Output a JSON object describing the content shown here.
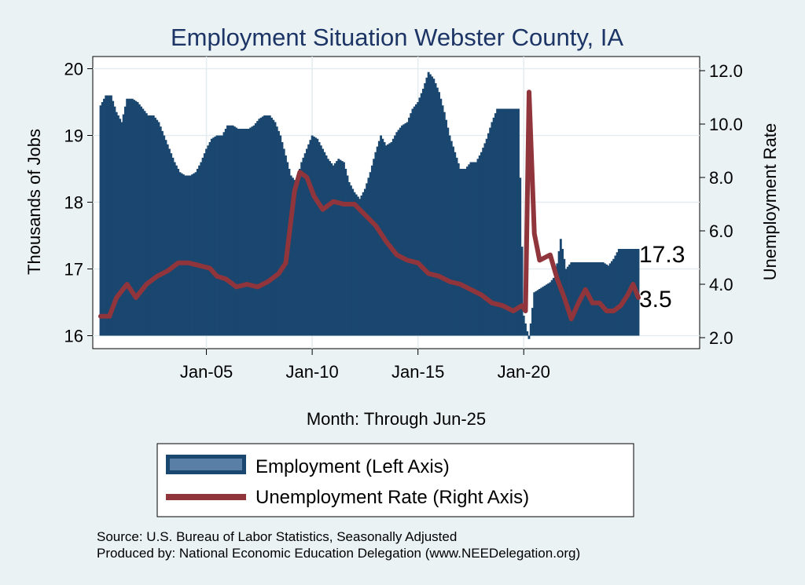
{
  "chart_data": {
    "type": "bar+line",
    "title": "Employment Situation Webster  County, IA",
    "xlabel": "Month: Through Jun-25",
    "ylabel_left": "Thousands of Jobs",
    "ylabel_right": "Unemployment Rate",
    "x_ticks": [
      "Jan-05",
      "Jan-10",
      "Jan-15",
      "Jan-20"
    ],
    "y_left_ticks": [
      "16",
      "17",
      "18",
      "19",
      "20"
    ],
    "y_right_ticks": [
      "2.0",
      "4.0",
      "6.0",
      "8.0",
      "10.0",
      "12.0"
    ],
    "ylim_left": [
      16,
      20
    ],
    "ylim_right": [
      2,
      12
    ],
    "x_range": [
      "Jan-00",
      "Jun-25"
    ],
    "grid": true,
    "legend_position": "bottom",
    "end_labels": {
      "employment": "17.3",
      "unemployment": "3.5"
    },
    "series": [
      {
        "name": "Employment (Left Axis)",
        "kind": "bar",
        "color": "#1a476f",
        "points": [
          [
            "2000-01",
            19.45
          ],
          [
            "2000-04",
            19.6
          ],
          [
            "2000-07",
            19.6
          ],
          [
            "2000-10",
            19.35
          ],
          [
            "2001-01",
            19.2
          ],
          [
            "2001-04",
            19.55
          ],
          [
            "2001-07",
            19.55
          ],
          [
            "2001-10",
            19.5
          ],
          [
            "2002-01",
            19.4
          ],
          [
            "2002-04",
            19.3
          ],
          [
            "2002-07",
            19.3
          ],
          [
            "2002-10",
            19.2
          ],
          [
            "2003-01",
            19.0
          ],
          [
            "2003-04",
            18.8
          ],
          [
            "2003-07",
            18.6
          ],
          [
            "2003-10",
            18.45
          ],
          [
            "2004-01",
            18.4
          ],
          [
            "2004-04",
            18.4
          ],
          [
            "2004-07",
            18.45
          ],
          [
            "2004-10",
            18.6
          ],
          [
            "2005-01",
            18.8
          ],
          [
            "2005-04",
            18.95
          ],
          [
            "2005-07",
            19.0
          ],
          [
            "2005-10",
            19.0
          ],
          [
            "2006-01",
            19.15
          ],
          [
            "2006-04",
            19.15
          ],
          [
            "2006-07",
            19.1
          ],
          [
            "2006-10",
            19.1
          ],
          [
            "2007-01",
            19.1
          ],
          [
            "2007-04",
            19.15
          ],
          [
            "2007-07",
            19.25
          ],
          [
            "2007-10",
            19.3
          ],
          [
            "2008-01",
            19.3
          ],
          [
            "2008-04",
            19.2
          ],
          [
            "2008-07",
            19.0
          ],
          [
            "2008-10",
            18.7
          ],
          [
            "2009-01",
            18.4
          ],
          [
            "2009-04",
            18.3
          ],
          [
            "2009-07",
            18.6
          ],
          [
            "2009-10",
            18.8
          ],
          [
            "2010-01",
            19.0
          ],
          [
            "2010-04",
            18.95
          ],
          [
            "2010-07",
            18.8
          ],
          [
            "2010-10",
            18.65
          ],
          [
            "2011-01",
            18.55
          ],
          [
            "2011-04",
            18.65
          ],
          [
            "2011-07",
            18.6
          ],
          [
            "2011-10",
            18.3
          ],
          [
            "2012-01",
            18.15
          ],
          [
            "2012-04",
            18.05
          ],
          [
            "2012-07",
            18.2
          ],
          [
            "2012-10",
            18.45
          ],
          [
            "2013-01",
            18.75
          ],
          [
            "2013-04",
            19.0
          ],
          [
            "2013-07",
            18.85
          ],
          [
            "2013-10",
            18.9
          ],
          [
            "2014-01",
            19.05
          ],
          [
            "2014-04",
            19.15
          ],
          [
            "2014-07",
            19.2
          ],
          [
            "2014-10",
            19.4
          ],
          [
            "2015-01",
            19.5
          ],
          [
            "2015-04",
            19.7
          ],
          [
            "2015-07",
            19.95
          ],
          [
            "2015-10",
            19.85
          ],
          [
            "2016-01",
            19.65
          ],
          [
            "2016-04",
            19.35
          ],
          [
            "2016-07",
            19.0
          ],
          [
            "2016-10",
            18.75
          ],
          [
            "2017-01",
            18.5
          ],
          [
            "2017-04",
            18.5
          ],
          [
            "2017-07",
            18.6
          ],
          [
            "2017-10",
            18.6
          ],
          [
            "2018-01",
            18.75
          ],
          [
            "2018-04",
            18.95
          ],
          [
            "2018-07",
            19.2
          ],
          [
            "2018-10",
            19.4
          ],
          [
            "2019-01",
            19.4
          ],
          [
            "2019-04",
            19.4
          ],
          [
            "2019-07",
            19.4
          ],
          [
            "2019-10",
            19.4
          ],
          [
            "2020-01",
            16.3
          ],
          [
            "2020-04",
            15.95
          ],
          [
            "2020-07",
            16.65
          ],
          [
            "2020-10",
            16.7
          ],
          [
            "2021-01",
            16.75
          ],
          [
            "2021-04",
            16.8
          ],
          [
            "2021-07",
            16.9
          ],
          [
            "2021-10",
            17.45
          ],
          [
            "2022-01",
            17.0
          ],
          [
            "2022-04",
            17.1
          ],
          [
            "2022-07",
            17.1
          ],
          [
            "2022-10",
            17.1
          ],
          [
            "2023-01",
            17.1
          ],
          [
            "2023-04",
            17.1
          ],
          [
            "2023-07",
            17.1
          ],
          [
            "2023-10",
            17.1
          ],
          [
            "2024-01",
            17.05
          ],
          [
            "2024-04",
            17.15
          ],
          [
            "2024-07",
            17.3
          ],
          [
            "2024-10",
            17.3
          ],
          [
            "2025-01",
            17.3
          ],
          [
            "2025-04",
            17.3
          ],
          [
            "2025-06",
            17.3
          ]
        ]
      },
      {
        "name": "Unemployment Rate (Right Axis)",
        "kind": "line",
        "color": "#90353b",
        "points": [
          [
            "2000-01",
            2.8
          ],
          [
            "2000-06",
            2.8
          ],
          [
            "2000-10",
            3.5
          ],
          [
            "2001-04",
            4.0
          ],
          [
            "2001-09",
            3.5
          ],
          [
            "2002-03",
            4.0
          ],
          [
            "2002-09",
            4.3
          ],
          [
            "2003-03",
            4.5
          ],
          [
            "2003-09",
            4.8
          ],
          [
            "2004-03",
            4.8
          ],
          [
            "2004-09",
            4.7
          ],
          [
            "2005-03",
            4.6
          ],
          [
            "2005-07",
            4.3
          ],
          [
            "2005-12",
            4.2
          ],
          [
            "2006-06",
            3.9
          ],
          [
            "2006-12",
            4.0
          ],
          [
            "2007-06",
            3.9
          ],
          [
            "2007-12",
            4.1
          ],
          [
            "2008-06",
            4.4
          ],
          [
            "2008-10",
            4.8
          ],
          [
            "2009-03",
            7.5
          ],
          [
            "2009-06",
            8.2
          ],
          [
            "2009-10",
            8.0
          ],
          [
            "2010-02",
            7.3
          ],
          [
            "2010-07",
            6.8
          ],
          [
            "2011-01",
            7.1
          ],
          [
            "2011-07",
            7.0
          ],
          [
            "2012-01",
            7.0
          ],
          [
            "2012-07",
            6.6
          ],
          [
            "2013-01",
            6.2
          ],
          [
            "2013-07",
            5.6
          ],
          [
            "2014-01",
            5.1
          ],
          [
            "2014-07",
            4.9
          ],
          [
            "2015-01",
            4.8
          ],
          [
            "2015-07",
            4.4
          ],
          [
            "2016-01",
            4.3
          ],
          [
            "2016-07",
            4.1
          ],
          [
            "2017-01",
            4.0
          ],
          [
            "2017-07",
            3.8
          ],
          [
            "2018-01",
            3.6
          ],
          [
            "2018-07",
            3.3
          ],
          [
            "2019-01",
            3.2
          ],
          [
            "2019-07",
            3.0
          ],
          [
            "2019-12",
            3.2
          ],
          [
            "2020-02",
            3.0
          ],
          [
            "2020-04",
            11.2
          ],
          [
            "2020-07",
            5.9
          ],
          [
            "2020-10",
            4.9
          ],
          [
            "2021-01",
            5.0
          ],
          [
            "2021-04",
            5.1
          ],
          [
            "2021-08",
            4.2
          ],
          [
            "2021-12",
            3.5
          ],
          [
            "2022-04",
            2.7
          ],
          [
            "2022-08",
            3.3
          ],
          [
            "2022-12",
            3.8
          ],
          [
            "2023-04",
            3.3
          ],
          [
            "2023-08",
            3.3
          ],
          [
            "2023-12",
            3.0
          ],
          [
            "2024-04",
            3.0
          ],
          [
            "2024-08",
            3.2
          ],
          [
            "2024-12",
            3.6
          ],
          [
            "2025-03",
            4.0
          ],
          [
            "2025-06",
            3.5
          ]
        ]
      }
    ]
  },
  "source_lines": [
    "Source: U.S. Bureau of Labor Statistics, Seasonally Adjusted",
    "Produced by: National Economic Education Delegation (www.NEEDelegation.org)"
  ]
}
